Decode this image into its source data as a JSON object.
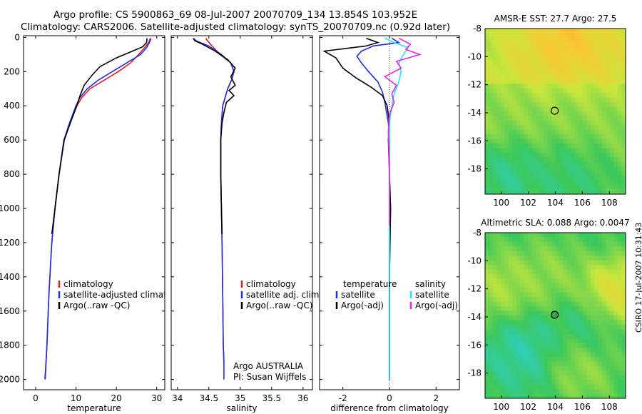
{
  "title": {
    "line1": "Argo profile: CS 5900863_69 08-Jul-2007 20070709_134 13.854S 103.952E",
    "line2": "Climatology: CARS2006. Satellite-adjusted climatology: synTS_20070709.nc (0.92d later)"
  },
  "footer": "CSIRO 17-Jul-2007 10:31:43",
  "colors": {
    "climatology": "#e02020",
    "satellite": "#1f2ee6",
    "argo": "#000000",
    "salinity_satellite": "#22e6e6",
    "argo_adj_salinity": "#ee22ee"
  },
  "chart_data": [
    {
      "type": "line",
      "name": "temperature-profile",
      "xlabel": "temperature",
      "ylabel": "",
      "xlim": [
        -3,
        32
      ],
      "ylim": [
        2060,
        -10
      ],
      "xticks": [
        0,
        10,
        20,
        30
      ],
      "yticks": [
        0,
        200,
        400,
        600,
        800,
        1000,
        1200,
        1400,
        1600,
        1800,
        2000
      ],
      "legend": {
        "position": "lower-right",
        "entries": [
          "climatology",
          "satellite-adjusted climatology",
          "Argo(..raw -QC)"
        ]
      },
      "series": [
        {
          "name": "climatology",
          "color_key": "climatology",
          "x": [
            28.4,
            28.0,
            27.0,
            25.5,
            23.5,
            20.5,
            17.0,
            13.5,
            11.5,
            10.2,
            8.5,
            7.0,
            5.8,
            4.8,
            4.0,
            3.3,
            2.8,
            2.4
          ],
          "y": [
            5,
            30,
            60,
            100,
            150,
            200,
            250,
            300,
            350,
            400,
            500,
            600,
            800,
            1000,
            1200,
            1500,
            1800,
            2000
          ]
        },
        {
          "name": "satellite-adjusted climatology",
          "color_key": "satellite",
          "x": [
            28.6,
            28.2,
            27.5,
            26.0,
            22.5,
            19.0,
            15.5,
            12.8,
            11.0,
            10.0,
            8.4,
            7.0,
            5.8,
            4.8,
            4.0,
            3.3,
            2.8,
            2.3
          ],
          "y": [
            5,
            30,
            60,
            100,
            150,
            200,
            250,
            300,
            350,
            400,
            500,
            600,
            800,
            1000,
            1200,
            1500,
            1800,
            2000
          ]
        },
        {
          "name": "Argo(..raw -QC)",
          "color_key": "argo",
          "x": [
            27.6,
            27.5,
            26.5,
            24.0,
            20.0,
            16.0,
            14.0,
            12.0,
            11.0,
            10.2,
            8.6,
            7.1,
            5.8,
            4.8,
            4.0
          ],
          "y": [
            5,
            30,
            55,
            80,
            120,
            170,
            220,
            280,
            340,
            400,
            500,
            600,
            800,
            1000,
            1150
          ]
        }
      ]
    },
    {
      "type": "line",
      "name": "salinity-profile",
      "xlabel": "salinity",
      "ylabel": "",
      "xlim": [
        33.9,
        36.15
      ],
      "ylim": [
        2060,
        -10
      ],
      "xticks": [
        34,
        34.5,
        35,
        35.5,
        36
      ],
      "legend": {
        "position": "lower-right",
        "entries": [
          "climatology",
          "satellite adj. clim.",
          "Argo(..raw -QC)"
        ]
      },
      "annotation": [
        "Argo AUSTRALIA",
        "PI: Susan Wijffels"
      ],
      "series": [
        {
          "name": "climatology",
          "color_key": "climatology",
          "x": [
            34.45,
            34.48,
            34.55,
            34.68,
            34.85,
            34.9,
            34.86,
            34.8,
            34.76,
            34.72,
            34.7,
            34.69,
            34.69,
            34.7,
            34.71,
            34.72,
            34.73,
            34.74
          ],
          "y": [
            5,
            20,
            50,
            100,
            150,
            200,
            250,
            300,
            350,
            400,
            500,
            600,
            800,
            1000,
            1200,
            1500,
            1800,
            1900
          ]
        },
        {
          "name": "satellite adj. clim.",
          "color_key": "satellite",
          "x": [
            34.25,
            34.3,
            34.5,
            34.7,
            34.85,
            34.9,
            34.86,
            34.8,
            34.76,
            34.72,
            34.7,
            34.69,
            34.69,
            34.7,
            34.71,
            34.72,
            34.73,
            34.74,
            34.74
          ],
          "y": [
            5,
            20,
            50,
            100,
            150,
            200,
            250,
            300,
            350,
            400,
            500,
            600,
            800,
            1000,
            1200,
            1500,
            1800,
            1900,
            2000
          ]
        },
        {
          "name": "Argo(..raw -QC)",
          "color_key": "argo",
          "x": [
            34.25,
            34.28,
            34.4,
            34.6,
            34.8,
            34.92,
            34.85,
            34.92,
            34.82,
            34.9,
            34.78,
            34.74,
            34.71,
            34.69,
            34.69,
            34.7,
            34.71
          ],
          "y": [
            5,
            20,
            40,
            80,
            130,
            180,
            230,
            280,
            310,
            340,
            380,
            440,
            500,
            600,
            800,
            1000,
            1150
          ]
        }
      ]
    },
    {
      "type": "line",
      "name": "difference-profile",
      "xlabel": "difference from climatology",
      "ylabel": "",
      "xlim": [
        -3.0,
        3.0
      ],
      "ylim": [
        2060,
        -10
      ],
      "xticks": [
        -2,
        0,
        2
      ],
      "legend": {
        "position": "lower-right",
        "entries": [
          "temperature",
          "satellite",
          "Argo(-adj)",
          "salinity",
          "satellite",
          "Argo(-adj)"
        ]
      },
      "series": [
        {
          "name": "temperature satellite",
          "color_key": "satellite",
          "x": [
            0.1,
            0.4,
            -0.7,
            -1.2,
            -1.4,
            -1.2,
            -0.9,
            -0.5,
            -0.3,
            -0.2,
            -0.05,
            0.0,
            0.0,
            0.0,
            0.0,
            0.0,
            0.0
          ],
          "y": [
            5,
            30,
            50,
            80,
            110,
            150,
            200,
            260,
            320,
            380,
            500,
            600,
            800,
            1000,
            1400,
            1800,
            2000
          ]
        },
        {
          "name": "temperature Argo(-adj)",
          "color_key": "argo",
          "x": [
            -1.0,
            -0.5,
            -1.0,
            -2.8,
            -2.3,
            -2.0,
            -1.4,
            -0.8,
            -0.3,
            -0.1,
            0.0,
            -0.05,
            0.0,
            0.05,
            0.0,
            0.0,
            0.0
          ],
          "y": [
            5,
            30,
            50,
            80,
            120,
            180,
            240,
            290,
            340,
            400,
            500,
            600,
            800,
            1000,
            1400,
            1800,
            2000
          ]
        },
        {
          "name": "salinity satellite",
          "color_key": "salinity_satellite",
          "x": [
            -0.2,
            0.2,
            0.8,
            0.6,
            0.4,
            0.5,
            0.4,
            0.2,
            0.1,
            0.0,
            0.0,
            0.0,
            0.0,
            0.0
          ],
          "y": [
            5,
            30,
            60,
            100,
            150,
            200,
            260,
            330,
            400,
            500,
            800,
            1200,
            1600,
            2000
          ]
        },
        {
          "name": "salinity Argo(-adj)",
          "color_key": "argo_adj_salinity",
          "x": [
            0.4,
            0.9,
            0.7,
            1.3,
            0.3,
            0.5,
            -0.2,
            0.3,
            0.1,
            0.2,
            0.0,
            -0.05,
            0.0,
            0.0
          ],
          "y": [
            5,
            40,
            70,
            100,
            140,
            180,
            230,
            280,
            330,
            380,
            450,
            550,
            800,
            1100
          ]
        }
      ]
    },
    {
      "type": "heatmap",
      "name": "sst-map",
      "title": "AMSR-E SST: 27.7 Argo: 27.5",
      "xlim": [
        98.8,
        109.2
      ],
      "ylim": [
        -19.8,
        -8.0
      ],
      "xticks": [
        100,
        102,
        104,
        106,
        108
      ],
      "yticks": [
        -8,
        -10,
        -12,
        -14,
        -16,
        -18
      ],
      "marker": {
        "lon": 103.952,
        "lat": -13.854
      },
      "features": [
        {
          "kind": "warm-patch",
          "lon": 104.8,
          "lat": -8.9,
          "level": 0.88
        },
        {
          "kind": "warm-patch",
          "lon": 102.5,
          "lat": -9.8,
          "level": 0.7
        },
        {
          "kind": "warm-patch",
          "lon": 107.5,
          "lat": -10.0,
          "level": 0.72
        },
        {
          "kind": "cool-patch",
          "lon": 100.5,
          "lat": -18.6,
          "level": 0.3
        },
        {
          "kind": "cool-patch",
          "lon": 104.5,
          "lat": -18.8,
          "level": 0.35
        },
        {
          "kind": "cool-patch",
          "lon": 107.0,
          "lat": -19.0,
          "level": 0.4
        }
      ]
    },
    {
      "type": "heatmap",
      "name": "sla-map",
      "title": "Altimetric SLA: 0.088 Argo: 0.0047",
      "xlim": [
        98.8,
        109.2
      ],
      "ylim": [
        -19.8,
        -8.0
      ],
      "xticks": [
        100,
        102,
        104,
        106,
        108
      ],
      "yticks": [
        -8,
        -10,
        -12,
        -14,
        -16,
        -18
      ],
      "marker": {
        "lon": 103.952,
        "lat": -13.854
      },
      "features": [
        {
          "kind": "high-patch",
          "lon": 108.2,
          "lat": -12.5,
          "level": 0.85
        },
        {
          "kind": "high-patch",
          "lon": 100.0,
          "lat": -11.8,
          "level": 0.65
        },
        {
          "kind": "high-patch",
          "lon": 103.5,
          "lat": -11.0,
          "level": 0.6
        },
        {
          "kind": "high-patch",
          "lon": 106.0,
          "lat": -17.5,
          "level": 0.62
        },
        {
          "kind": "low-patch",
          "lon": 101.5,
          "lat": -16.5,
          "level": 0.3
        },
        {
          "kind": "low-patch",
          "lon": 106.5,
          "lat": -14.5,
          "level": 0.33
        }
      ]
    }
  ]
}
